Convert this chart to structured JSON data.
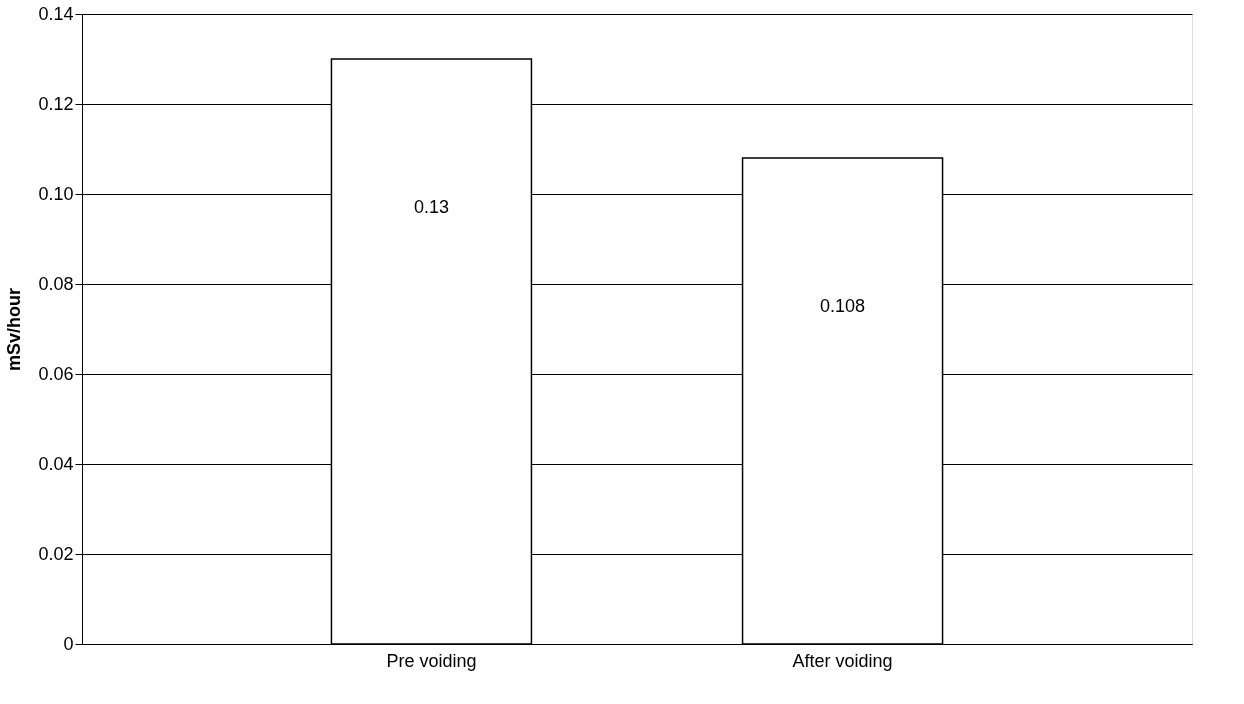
{
  "chart_data": {
    "type": "bar",
    "ylabel": "mSv/hour",
    "categories": [
      "Pre voiding",
      "After voiding"
    ],
    "series": [
      {
        "color": "#ffffff",
        "values": [
          0.13,
          0.108
        ]
      }
    ],
    "ylim": [
      0,
      0.14
    ],
    "yticks": [
      0,
      0.02,
      0.04,
      0.06,
      0.08,
      {
        "value": 0.1,
        "label": "0.10"
      },
      0.12,
      0.14
    ],
    "grid": "y",
    "data_labels": true
  }
}
